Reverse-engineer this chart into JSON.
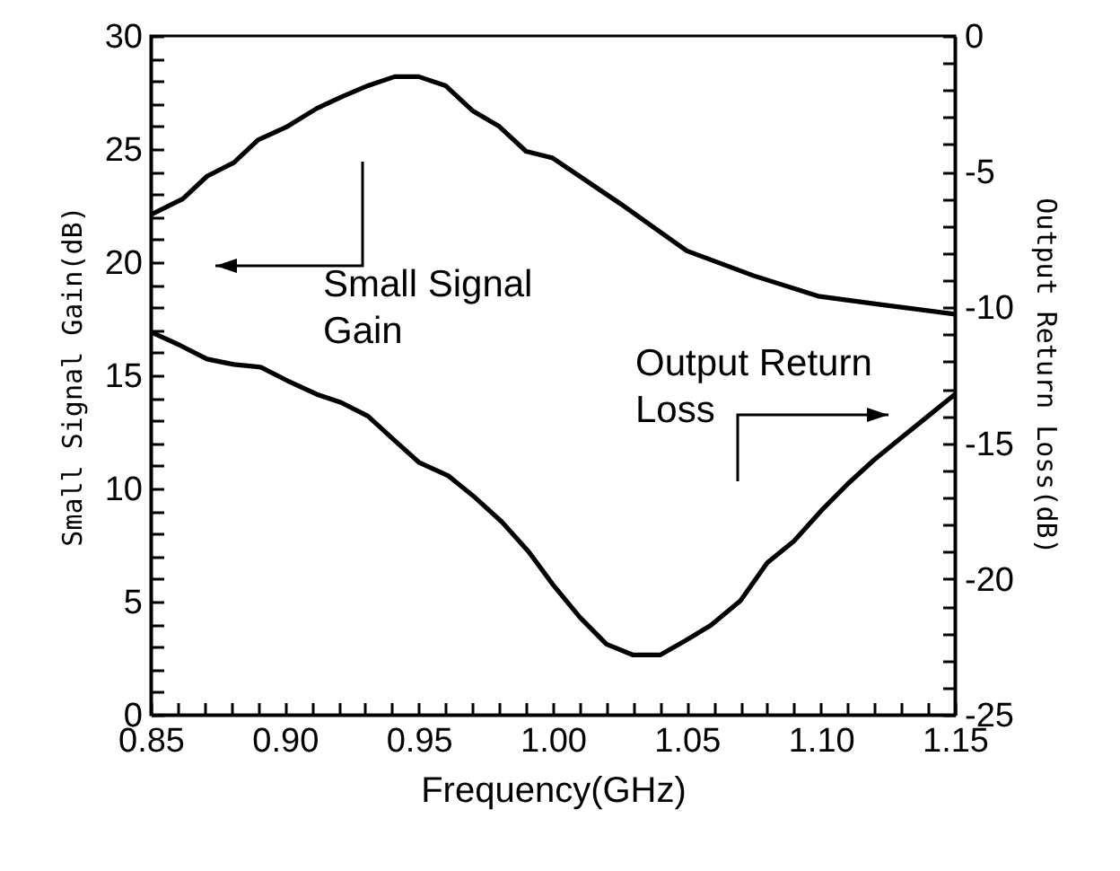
{
  "chart_data": {
    "type": "line",
    "xlabel": "Frequency(GHz)",
    "ylabel": "Small Signal Gain(dB)",
    "y2label": "Output Return Loss(dB)",
    "xlim": [
      0.85,
      1.15
    ],
    "ylim": [
      0,
      30
    ],
    "y2lim": [
      -25,
      0
    ],
    "xticks": [
      {
        "value": 0.85,
        "label": "0.85"
      },
      {
        "value": 0.86,
        "label": null
      },
      {
        "value": 0.87,
        "label": null
      },
      {
        "value": 0.88,
        "label": null
      },
      {
        "value": 0.89,
        "label": null
      },
      {
        "value": 0.9,
        "label": "0.90"
      },
      {
        "value": 0.91,
        "label": null
      },
      {
        "value": 0.92,
        "label": null
      },
      {
        "value": 0.93,
        "label": null
      },
      {
        "value": 0.94,
        "label": null
      },
      {
        "value": 0.95,
        "label": "0.95"
      },
      {
        "value": 0.96,
        "label": null
      },
      {
        "value": 0.97,
        "label": null
      },
      {
        "value": 0.98,
        "label": null
      },
      {
        "value": 0.99,
        "label": null
      },
      {
        "value": 1.0,
        "label": "1.00"
      },
      {
        "value": 1.01,
        "label": null
      },
      {
        "value": 1.02,
        "label": null
      },
      {
        "value": 1.03,
        "label": null
      },
      {
        "value": 1.04,
        "label": null
      },
      {
        "value": 1.05,
        "label": "1.05"
      },
      {
        "value": 1.06,
        "label": null
      },
      {
        "value": 1.07,
        "label": null
      },
      {
        "value": 1.08,
        "label": null
      },
      {
        "value": 1.09,
        "label": null
      },
      {
        "value": 1.1,
        "label": "1.10"
      },
      {
        "value": 1.11,
        "label": null
      },
      {
        "value": 1.12,
        "label": null
      },
      {
        "value": 1.13,
        "label": null
      },
      {
        "value": 1.14,
        "label": null
      },
      {
        "value": 1.15,
        "label": "1.15"
      }
    ],
    "yticks": [
      0,
      {
        "value": 1,
        "label": null
      },
      {
        "value": 2,
        "label": null
      },
      {
        "value": 3,
        "label": null
      },
      {
        "value": 4,
        "label": null
      },
      5,
      {
        "value": 6,
        "label": null
      },
      {
        "value": 7,
        "label": null
      },
      {
        "value": 8,
        "label": null
      },
      {
        "value": 9,
        "label": null
      },
      10,
      {
        "value": 11,
        "label": null
      },
      {
        "value": 12,
        "label": null
      },
      {
        "value": 13,
        "label": null
      },
      {
        "value": 14,
        "label": null
      },
      15,
      {
        "value": 16,
        "label": null
      },
      {
        "value": 17,
        "label": null
      },
      {
        "value": 18,
        "label": null
      },
      {
        "value": 19,
        "label": null
      },
      20,
      {
        "value": 21,
        "label": null
      },
      {
        "value": 22,
        "label": null
      },
      {
        "value": 23,
        "label": null
      },
      {
        "value": 24,
        "label": null
      },
      25,
      {
        "value": 26,
        "label": null
      },
      {
        "value": 27,
        "label": null
      },
      {
        "value": 28,
        "label": null
      },
      {
        "value": 29,
        "label": null
      },
      30
    ],
    "y2ticks": [
      -25,
      {
        "value": -24,
        "label": null
      },
      {
        "value": -23,
        "label": null
      },
      {
        "value": -22,
        "label": null
      },
      {
        "value": -21,
        "label": null
      },
      -20,
      {
        "value": -19,
        "label": null
      },
      {
        "value": -18,
        "label": null
      },
      {
        "value": -17,
        "label": null
      },
      {
        "value": -16,
        "label": null
      },
      -15,
      {
        "value": -14,
        "label": null
      },
      {
        "value": -13,
        "label": null
      },
      {
        "value": -12,
        "label": null
      },
      {
        "value": -11,
        "label": null
      },
      -10,
      {
        "value": -9,
        "label": null
      },
      {
        "value": -8,
        "label": null
      },
      {
        "value": -7,
        "label": null
      },
      {
        "value": -6,
        "label": null
      },
      -5,
      {
        "value": -4,
        "label": null
      },
      {
        "value": -3,
        "label": null
      },
      {
        "value": -2,
        "label": null
      },
      {
        "value": -1,
        "label": null
      },
      0
    ],
    "grid": false,
    "line_style": "solid",
    "marker": "none",
    "annotations": [
      "Small Signal Gain",
      "Output Return Loss"
    ],
    "series": [
      {
        "color": "#000000",
        "x": [
          0.85,
          0.862,
          0.871,
          0.881,
          0.89,
          0.901,
          0.912,
          0.921,
          0.931,
          0.941,
          0.95,
          0.96,
          0.97,
          0.98,
          0.99,
          1.0,
          1.025,
          1.05,
          1.075,
          1.099,
          1.124,
          1.15
        ],
        "values": [
          22.1,
          22.8,
          23.8,
          24.4,
          25.4,
          26.0,
          26.8,
          27.3,
          27.8,
          28.2,
          28.2,
          27.8,
          26.7,
          26.0,
          24.9,
          24.6,
          22.6,
          20.5,
          19.4,
          18.5,
          18.1,
          17.7
        ]
      },
      {
        "color": "#000000",
        "axis": "y2",
        "x": [
          0.85,
          0.861,
          0.871,
          0.881,
          0.891,
          0.901,
          0.912,
          0.921,
          0.931,
          0.941,
          0.95,
          0.961,
          0.971,
          0.981,
          0.991,
          1.0,
          1.01,
          1.02,
          1.03,
          1.04,
          1.049,
          1.059,
          1.07,
          1.08,
          1.09,
          1.1,
          1.11,
          1.12,
          1.13,
          1.14,
          1.15
        ],
        "values": [
          -10.9,
          -11.4,
          -11.9,
          -12.1,
          -12.2,
          -12.7,
          -13.2,
          -13.5,
          -14.0,
          -14.9,
          -15.7,
          -16.2,
          -17.0,
          -17.9,
          -19.0,
          -20.2,
          -21.4,
          -22.4,
          -22.8,
          -22.8,
          -22.3,
          -21.7,
          -20.8,
          -19.4,
          -18.6,
          -17.5,
          -16.5,
          -15.6,
          -14.8,
          -14.0,
          -13.2
        ]
      }
    ]
  }
}
